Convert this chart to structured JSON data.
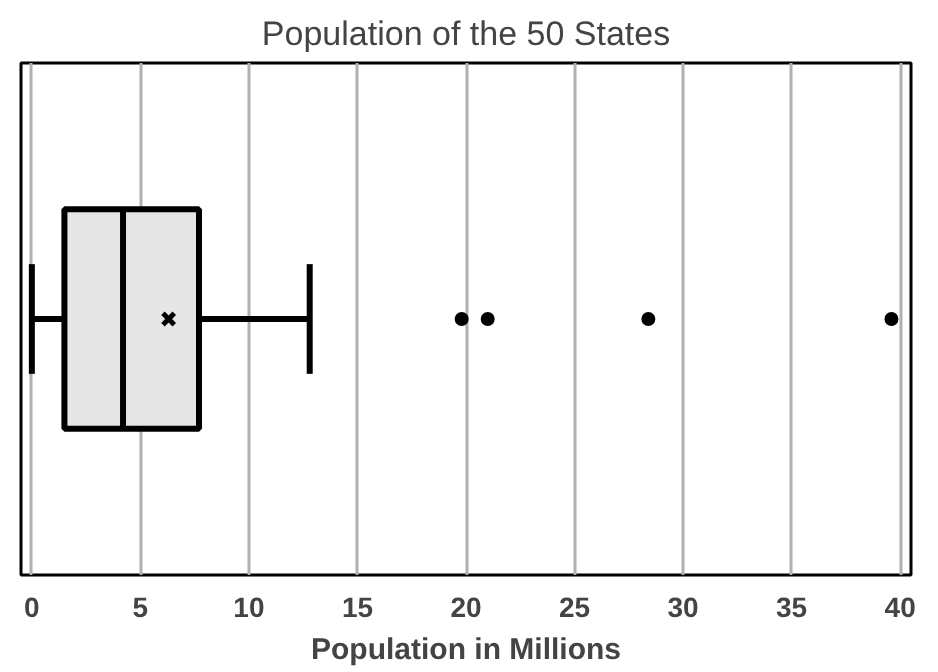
{
  "chart_data": {
    "type": "box",
    "orientation": "horizontal",
    "title": "Population of the 50 States",
    "xlabel": "Population in Millions",
    "categories": [
      null
    ],
    "boxes": [
      {
        "low": 0.0,
        "q1": 1.5,
        "median": 4.2,
        "q3": 7.7,
        "high": 12.8,
        "mean": 6.3,
        "outliers": [
          19.8,
          21.0,
          28.4,
          39.6
        ]
      }
    ],
    "color": "#e6e6e6",
    "xlim": [
      -0.5,
      40.5
    ],
    "xticks": [
      0,
      5,
      10,
      15,
      20,
      25,
      30,
      35,
      40
    ],
    "grid": "x",
    "marker": "circle"
  }
}
